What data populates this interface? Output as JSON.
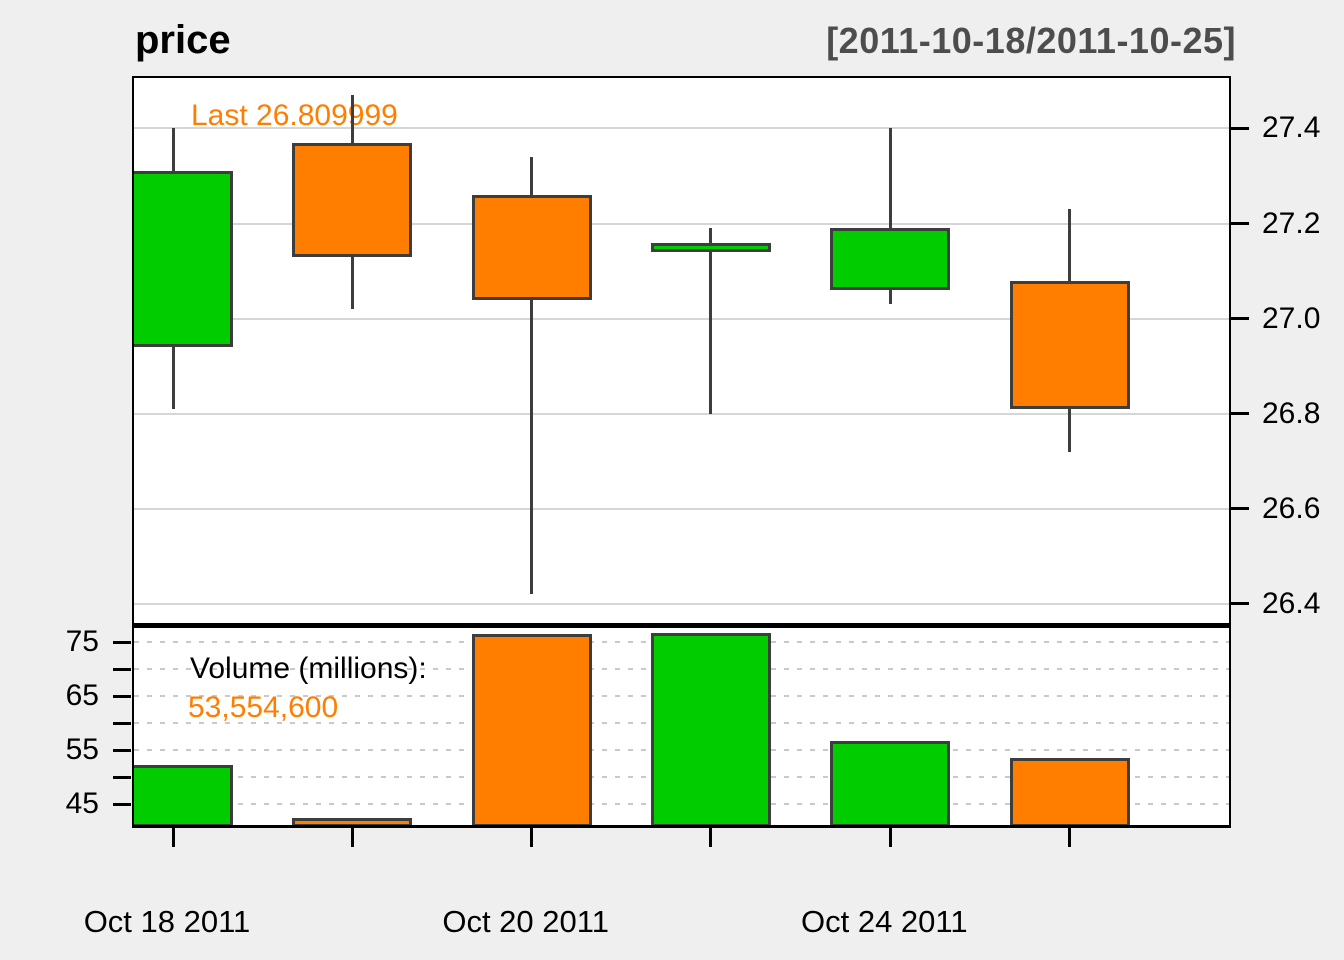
{
  "title": "price",
  "date_range": "[2011-10-18/2011-10-25]",
  "annotations": {
    "last_label": "Last 26.809999",
    "volume_label": "Volume (millions):",
    "volume_value": "53,554,600"
  },
  "colors": {
    "up": "#00CC00",
    "down": "#FF7E00",
    "candle_border": "#3D3D3D",
    "grid_solid": "#D6D6D6",
    "grid_dotted": "#C9C9C9",
    "panel_bg": "#FFFFFF",
    "outer_bg": "#EFEFEF",
    "range_text": "#4D4D4D",
    "annotation_orange": "#FF7E00"
  },
  "chart_data": [
    {
      "type": "candlestick",
      "title": "price",
      "subtitle": "[2011-10-18/2011-10-25]",
      "x": [
        "2011-10-18",
        "2011-10-19",
        "2011-10-20",
        "2011-10-21",
        "2011-10-24",
        "2011-10-25"
      ],
      "ohlc": [
        {
          "open": 26.94,
          "high": 27.4,
          "low": 26.81,
          "close": 27.31
        },
        {
          "open": 27.37,
          "high": 27.47,
          "low": 27.02,
          "close": 27.13
        },
        {
          "open": 27.26,
          "high": 27.34,
          "low": 26.42,
          "close": 27.04
        },
        {
          "open": 27.14,
          "high": 27.19,
          "low": 26.8,
          "close": 27.16
        },
        {
          "open": 27.06,
          "high": 27.4,
          "low": 27.03,
          "close": 27.19
        },
        {
          "open": 27.08,
          "high": 27.23,
          "low": 26.72,
          "close": 26.81
        }
      ],
      "last": 26.809999,
      "y_ticks": [
        27.4,
        27.2,
        27.0,
        26.8,
        26.6,
        26.4
      ],
      "ylim": [
        26.36,
        27.506
      ],
      "grid": true,
      "up_color_note": "green up candles, orange down candles",
      "legend": "none"
    },
    {
      "type": "bar",
      "title": "Volume (millions)",
      "x": [
        "2011-10-18",
        "2011-10-19",
        "2011-10-20",
        "2011-10-21",
        "2011-10-24",
        "2011-10-25"
      ],
      "values_millions": [
        52.3,
        42.4,
        76.5,
        76.8,
        56.8,
        53.55
      ],
      "last_volume_shares": "53,554,600",
      "y_ticks_labeled": [
        75,
        65,
        55,
        45
      ],
      "y_gridlines": [
        75,
        70,
        65,
        60,
        55,
        50,
        45
      ],
      "ylim": [
        41.17,
        77.65
      ],
      "grid": "dotted",
      "legend": "none"
    }
  ],
  "x_axis": {
    "tick_dates": [
      "2011-10-18",
      "2011-10-19",
      "2011-10-20",
      "2011-10-21",
      "2011-10-24",
      "2011-10-25"
    ],
    "labels": [
      {
        "text": "Oct 18 2011",
        "index": 0
      },
      {
        "text": "Oct 20 2011",
        "index": 2
      },
      {
        "text": "Oct 24 2011",
        "index": 4
      }
    ]
  }
}
